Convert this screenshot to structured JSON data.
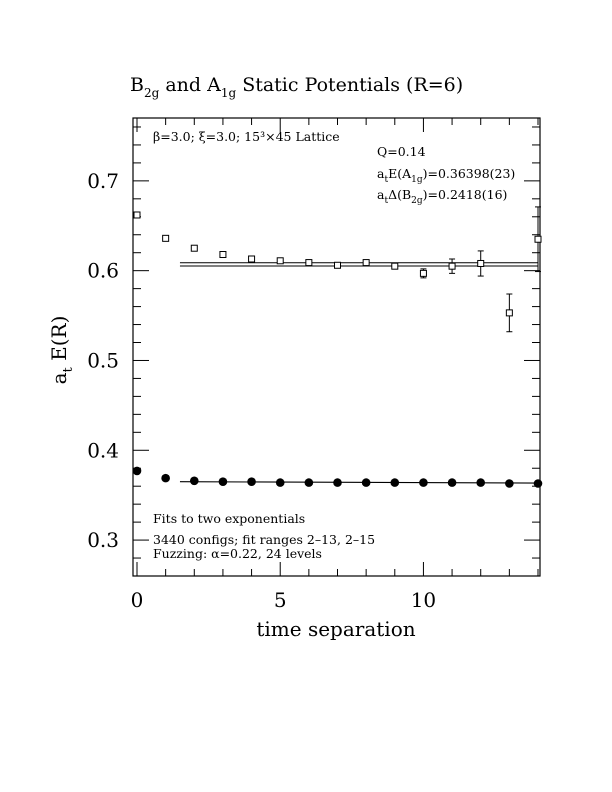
{
  "chart_data": {
    "type": "scatter",
    "title": {
      "base1": "B",
      "sub1": "2g",
      "mid": " and A",
      "sub2": "1g",
      "tail": " Static Potentials (R=6)"
    },
    "xlabel": "time separation",
    "ylabel": {
      "base": "a",
      "sub": "t",
      "tail": " E(R)"
    },
    "xlim": [
      0,
      14
    ],
    "ylim": [
      0.26,
      0.77
    ],
    "xticks": [
      {
        "v": 0,
        "label": "0"
      },
      {
        "v": 5,
        "label": "5"
      },
      {
        "v": 10,
        "label": "10"
      }
    ],
    "yticks": [
      {
        "v": 0.3,
        "label": "0.3"
      },
      {
        "v": 0.4,
        "label": "0.4"
      },
      {
        "v": 0.5,
        "label": "0.5"
      },
      {
        "v": 0.6,
        "label": "0.6"
      },
      {
        "v": 0.7,
        "label": "0.7"
      }
    ],
    "annotations": {
      "lattice": "β=3.0; ξ=3.0; 15³×45 Lattice",
      "q": "Q=0.14",
      "ea1g": {
        "pre": "a",
        "s1": "t",
        "mid": "E(A",
        "s2": "1g",
        "post": ")=0.36398(23)"
      },
      "db2g": {
        "pre": "a",
        "s1": "t",
        "mid": "Δ(B",
        "s2": "2g",
        "post": ")=0.2418(16)"
      },
      "fits": "Fits to two exponentials",
      "configs": "3440 configs; fit ranges 2–13, 2–15",
      "fuzzing": "Fuzzing: α=0.22, 24 levels"
    },
    "series": [
      {
        "marker": "open-square",
        "x": [
          0,
          1,
          2,
          3,
          4,
          5,
          6,
          7,
          8,
          9,
          10,
          11,
          12,
          13,
          14
        ],
        "y": [
          0.662,
          0.636,
          0.625,
          0.618,
          0.613,
          0.611,
          0.609,
          0.606,
          0.609,
          0.605,
          0.597,
          0.605,
          0.608,
          0.553,
          0.635
        ],
        "err": [
          0.002,
          0.002,
          0.002,
          0.002,
          0.002,
          0.002,
          0.002,
          0.002,
          0.003,
          0.003,
          0.005,
          0.008,
          0.014,
          0.021,
          0.036
        ]
      },
      {
        "marker": "filled-circle",
        "x": [
          0,
          1,
          2,
          3,
          4,
          5,
          6,
          7,
          8,
          9,
          10,
          11,
          12,
          13,
          14
        ],
        "y": [
          0.377,
          0.369,
          0.366,
          0.365,
          0.365,
          0.364,
          0.364,
          0.364,
          0.364,
          0.364,
          0.364,
          0.364,
          0.364,
          0.363,
          0.363
        ],
        "err": [
          0.0005,
          0.0005,
          0.0005,
          0.0005,
          0.0005,
          0.0005,
          0.0005,
          0.0005,
          0.0005,
          0.0005,
          0.0005,
          0.0006,
          0.0008,
          0.001,
          0.0015
        ]
      }
    ],
    "fits": [
      {
        "x": [
          1.5,
          14
        ],
        "y": [
          0.607,
          0.607
        ],
        "style": "double"
      },
      {
        "x": [
          1.5,
          14
        ],
        "y": [
          0.365,
          0.3635
        ],
        "style": "single"
      }
    ]
  }
}
